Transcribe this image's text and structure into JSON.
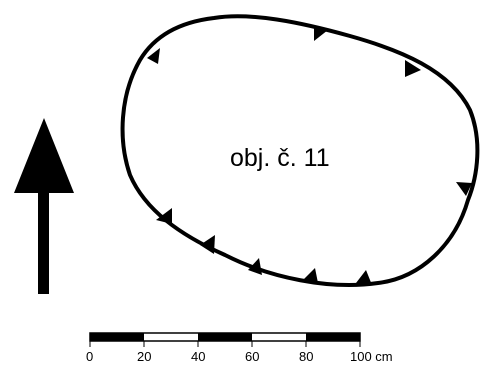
{
  "feature": {
    "label": "obj. č. 11"
  },
  "scale_bar": {
    "ticks": [
      "0",
      "20",
      "40",
      "60",
      "80",
      "100 cm"
    ]
  },
  "colors": {
    "ink": "#000000",
    "background": "#ffffff"
  },
  "icons": {
    "north_arrow": "north-arrow-icon"
  }
}
